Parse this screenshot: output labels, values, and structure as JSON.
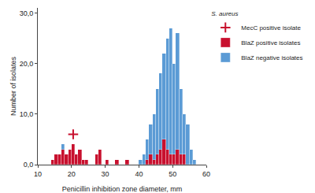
{
  "chart_data": {
    "type": "histogram",
    "x_label": "Penicillin inhibition zone diameter, mm",
    "y_label": "Number of isolates",
    "legend_title": "S. aureus",
    "stacked": true,
    "grid": false,
    "legend": "right",
    "bins": [
      13,
      14,
      15,
      16,
      17,
      18,
      19,
      20,
      21,
      22,
      23,
      24,
      25,
      26,
      27,
      28,
      29,
      30,
      31,
      32,
      33,
      34,
      35,
      36,
      37,
      38,
      39,
      40,
      41,
      42,
      43,
      44,
      45,
      46,
      47,
      48,
      49,
      50,
      51,
      52,
      53,
      54,
      55,
      56,
      57
    ],
    "series": [
      {
        "name": "BlaZ negative isolates",
        "color": "#5b9bd5",
        "values": [
          0,
          0,
          0,
          0,
          1,
          0,
          0,
          0,
          0,
          0,
          0,
          0,
          0,
          0,
          0,
          0,
          0,
          0,
          0,
          0,
          0,
          0,
          0,
          0,
          0,
          0,
          0,
          1,
          2,
          4,
          6,
          9,
          13,
          15,
          17,
          22,
          25,
          18,
          23,
          13,
          8,
          8,
          3,
          1
        ]
      },
      {
        "name": "BlaZ positive isolates",
        "color": "#c8102e",
        "values": [
          0,
          1,
          2,
          2,
          3,
          2,
          3,
          4,
          2,
          3,
          1,
          1,
          0,
          0,
          2,
          3,
          0,
          1,
          0,
          0,
          1,
          0,
          0,
          1,
          0,
          0,
          0,
          0,
          0,
          1,
          2,
          1,
          2,
          3,
          5,
          3,
          2,
          2,
          3,
          2,
          2,
          0,
          0,
          0
        ]
      },
      {
        "name": "MecC positive isolate",
        "type": "scatter",
        "marker": "cross",
        "color": "#c8102e",
        "x": [
          20.5
        ],
        "values": [
          6
        ]
      }
    ],
    "xlim": [
      10,
      60
    ],
    "xticks": [
      10,
      20,
      30,
      40,
      50,
      60
    ],
    "ylim": [
      0,
      31
    ],
    "yticks": [
      {
        "value": 0,
        "label": "0,0"
      },
      {
        "value": 10,
        "label": "10,0"
      },
      {
        "value": 20,
        "label": "20,0"
      },
      {
        "value": 30,
        "label": "30,0"
      }
    ]
  }
}
